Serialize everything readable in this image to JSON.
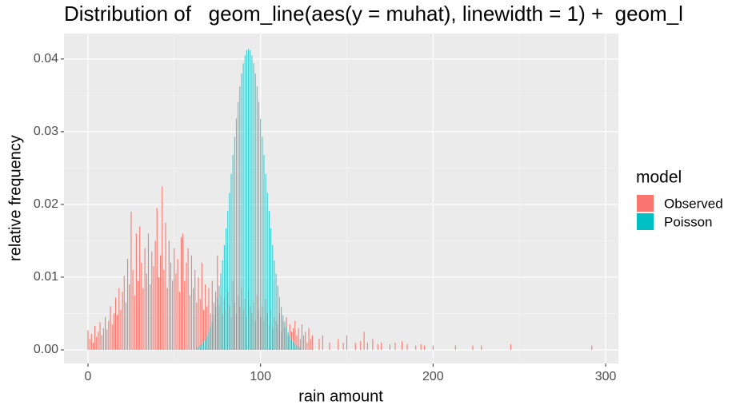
{
  "chart_data": {
    "type": "bar",
    "title": "Distribution of   geom_line(aes(y = muhat), linewidth = 1) +  geom_l",
    "x_label": "rain amount",
    "y_label": "relative frequency",
    "legend_title": "model",
    "xlim": [
      -13.9,
      307.4
    ],
    "ylim": [
      -0.00187,
      0.0435
    ],
    "xticks": [
      0,
      100,
      200,
      300
    ],
    "minor_xticks": [
      50,
      150,
      250
    ],
    "yticks": [
      {
        "value": 0,
        "label": "0.00"
      },
      {
        "value": 0.01,
        "label": "0.01"
      },
      {
        "value": 0.02,
        "label": "0.02"
      },
      {
        "value": 0.03,
        "label": "0.03"
      },
      {
        "value": 0.04,
        "label": "0.04"
      }
    ],
    "minor_yticks": [
      0.005,
      0.015,
      0.025,
      0.035
    ],
    "grid": true,
    "series": [
      {
        "name": "Observed",
        "color": "#f8766d",
        "x": [
          0,
          1,
          2,
          3,
          4,
          5,
          6,
          7,
          8,
          9,
          10,
          11,
          12,
          13,
          14,
          15,
          16,
          17,
          18,
          19,
          20,
          21,
          22,
          23,
          24,
          25,
          26,
          27,
          28,
          29,
          30,
          31,
          32,
          33,
          34,
          35,
          36,
          37,
          38,
          39,
          40,
          41,
          42,
          43,
          44,
          45,
          46,
          47,
          48,
          49,
          50,
          51,
          52,
          53,
          54,
          55,
          56,
          57,
          58,
          59,
          60,
          61,
          62,
          63,
          64,
          65,
          66,
          67,
          68,
          69,
          70,
          71,
          72,
          73,
          74,
          75,
          76,
          77,
          78,
          79,
          80,
          81,
          82,
          83,
          84,
          85,
          86,
          87,
          88,
          89,
          90,
          91,
          92,
          93,
          94,
          95,
          96,
          97,
          98,
          99,
          100,
          101,
          102,
          103,
          104,
          105,
          106,
          107,
          108,
          109,
          110,
          111,
          112,
          113,
          114,
          115,
          116,
          117,
          118,
          119,
          120,
          121,
          122,
          123,
          124,
          125,
          126,
          127,
          128,
          129,
          130,
          134,
          136,
          140,
          145,
          148,
          150,
          155,
          158,
          160,
          162,
          165,
          168,
          170,
          175,
          178,
          182,
          185,
          190,
          193,
          195,
          200,
          213,
          223,
          228,
          245,
          292
        ],
        "values": [
          0.0027,
          0.0015,
          0.0022,
          0.001,
          0.0033,
          0.0018,
          0.0025,
          0.0038,
          0.002,
          0.003,
          0.0045,
          0.0028,
          0.004,
          0.006,
          0.0035,
          0.005,
          0.0072,
          0.0048,
          0.0085,
          0.0055,
          0.008,
          0.0102,
          0.0065,
          0.0125,
          0.009,
          0.019,
          0.011,
          0.0075,
          0.016,
          0.0095,
          0.017,
          0.012,
          0.0085,
          0.014,
          0.0105,
          0.016,
          0.009,
          0.0135,
          0.0115,
          0.015,
          0.0195,
          0.01,
          0.013,
          0.0225,
          0.011,
          0.0175,
          0.0085,
          0.015,
          0.012,
          0.0095,
          0.014,
          0.0105,
          0.0125,
          0.008,
          0.0155,
          0.016,
          0.0095,
          0.012,
          0.014,
          0.0075,
          0.013,
          0.0085,
          0.011,
          0.0065,
          0.01,
          0.007,
          0.012,
          0.0055,
          0.009,
          0.006,
          0.0085,
          0.005,
          0.0095,
          0.0065,
          0.008,
          0.013,
          0.006,
          0.0075,
          0.005,
          0.007,
          0.0055,
          0.008,
          0.006,
          0.0045,
          0.0095,
          0.0065,
          0.005,
          0.0075,
          0.006,
          0.0085,
          0.0055,
          0.007,
          0.0045,
          0.008,
          0.006,
          0.005,
          0.0065,
          0.004,
          0.0075,
          0.0055,
          0.0045,
          0.006,
          0.004,
          0.007,
          0.005,
          0.0035,
          0.0055,
          0.003,
          0.0045,
          0.004,
          0.0035,
          0.005,
          0.0025,
          0.004,
          0.003,
          0.0045,
          0.002,
          0.0035,
          0.0025,
          0.003,
          0.004,
          0.002,
          0.003,
          0.0015,
          0.0035,
          0.002,
          0.0025,
          0.001,
          0.003,
          0.0015,
          0.002,
          0.0015,
          0.002,
          0.001,
          0.0015,
          0.001,
          0.002,
          0.001,
          0.0012,
          0.0025,
          0.001,
          0.0015,
          0.0008,
          0.001,
          0.0008,
          0.001,
          0.0012,
          0.0008,
          0.0006,
          0.0008,
          0.0006,
          0.0006,
          0.0006,
          0.0006,
          0.0006,
          0.0008,
          0.0006
        ]
      },
      {
        "name": "Poisson",
        "color": "#00bfc4",
        "x": [
          63,
          64,
          65,
          66,
          67,
          68,
          69,
          70,
          71,
          72,
          73,
          74,
          75,
          76,
          77,
          78,
          79,
          80,
          81,
          82,
          83,
          84,
          85,
          86,
          87,
          88,
          89,
          90,
          91,
          92,
          93,
          94,
          95,
          96,
          97,
          98,
          99,
          100,
          101,
          102,
          103,
          104,
          105,
          106,
          107,
          108,
          109,
          110,
          111,
          112,
          113,
          114,
          115,
          116,
          117,
          118,
          119,
          120,
          121,
          122,
          123
        ],
        "values": [
          0.0003,
          0.0005,
          0.0006,
          0.0008,
          0.0011,
          0.0014,
          0.0019,
          0.0024,
          0.0031,
          0.0039,
          0.0048,
          0.0059,
          0.0073,
          0.0088,
          0.0105,
          0.0123,
          0.0144,
          0.0167,
          0.0191,
          0.0216,
          0.0242,
          0.0268,
          0.0293,
          0.0318,
          0.0341,
          0.0362,
          0.038,
          0.0394,
          0.0405,
          0.0412,
          0.0414,
          0.0412,
          0.0405,
          0.0394,
          0.038,
          0.0362,
          0.0341,
          0.0318,
          0.0293,
          0.0268,
          0.0242,
          0.0216,
          0.0191,
          0.0167,
          0.0144,
          0.0123,
          0.0105,
          0.0088,
          0.0073,
          0.0059,
          0.0048,
          0.0039,
          0.0031,
          0.0024,
          0.0019,
          0.0014,
          0.0011,
          0.0008,
          0.0006,
          0.0005,
          0.0003
        ]
      }
    ]
  }
}
